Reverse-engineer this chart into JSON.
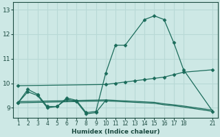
{
  "bg_color": "#cde8e5",
  "grid_color": "#b8d8d5",
  "line_color": "#1a6b5a",
  "marker_color": "#1a6b5a",
  "xlabel": "Humidex (Indice chaleur)",
  "xlabel_color": "#1a4a40",
  "tick_color": "#1a4a40",
  "ylim": [
    8.6,
    13.3
  ],
  "xlim": [
    0.5,
    21.5
  ],
  "yticks": [
    9,
    10,
    11,
    12,
    13
  ],
  "xticks": [
    1,
    2,
    3,
    4,
    5,
    6,
    7,
    8,
    9,
    10,
    11,
    12,
    13,
    14,
    15,
    16,
    17,
    18,
    21
  ],
  "series": [
    {
      "x": [
        1,
        2,
        3,
        4,
        5,
        6,
        7,
        8,
        9,
        10,
        11,
        12,
        14,
        15,
        16,
        17,
        18,
        21
      ],
      "y": [
        9.2,
        9.75,
        9.55,
        9.05,
        9.05,
        9.4,
        9.3,
        8.8,
        8.85,
        10.4,
        11.55,
        11.55,
        12.6,
        12.75,
        12.6,
        11.65,
        10.55,
        8.85
      ],
      "marker": true,
      "linewidth": 0.9,
      "markersize": 2.5
    },
    {
      "x": [
        1,
        10,
        11,
        12,
        13,
        14,
        15,
        16,
        17,
        18,
        21
      ],
      "y": [
        9.9,
        9.95,
        10.0,
        10.05,
        10.1,
        10.15,
        10.2,
        10.25,
        10.35,
        10.45,
        10.55
      ],
      "marker": true,
      "linewidth": 0.9,
      "markersize": 2.5
    },
    {
      "x": [
        1,
        2,
        3,
        4,
        5,
        6,
        7,
        8,
        9,
        10
      ],
      "y": [
        9.2,
        9.65,
        9.5,
        9.0,
        9.05,
        9.35,
        9.25,
        8.75,
        8.8,
        9.3
      ],
      "marker": true,
      "linewidth": 0.9,
      "markersize": 2.5
    },
    {
      "x": [
        1,
        10,
        11,
        12,
        13,
        14,
        15,
        16,
        17,
        18,
        21
      ],
      "y": [
        9.2,
        9.28,
        9.26,
        9.24,
        9.22,
        9.2,
        9.18,
        9.12,
        9.08,
        9.03,
        8.85
      ],
      "marker": false,
      "linewidth": 0.9,
      "markersize": 0
    },
    {
      "x": [
        1,
        10,
        11,
        12,
        13,
        14,
        15,
        16,
        17,
        18,
        21
      ],
      "y": [
        9.25,
        9.32,
        9.3,
        9.28,
        9.26,
        9.24,
        9.22,
        9.16,
        9.12,
        9.07,
        8.9
      ],
      "marker": false,
      "linewidth": 0.9,
      "markersize": 0
    }
  ]
}
